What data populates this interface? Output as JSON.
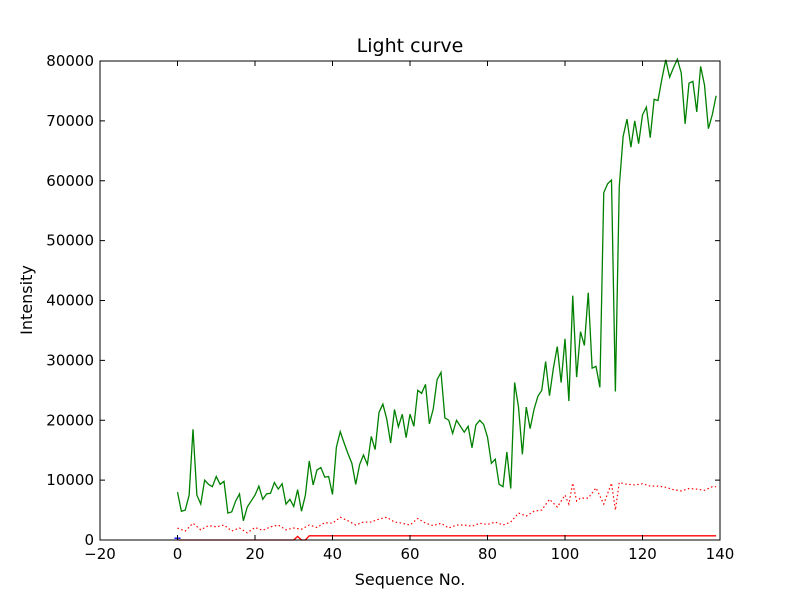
{
  "chart_data": {
    "type": "line",
    "title": "Light curve",
    "xlabel": "Sequence No.",
    "ylabel": "Intensity",
    "xlim": [
      -20,
      140
    ],
    "ylim": [
      0,
      80000
    ],
    "xticks": [
      -20,
      0,
      20,
      40,
      60,
      80,
      100,
      120,
      140
    ],
    "yticks": [
      0,
      10000,
      20000,
      30000,
      40000,
      50000,
      60000,
      70000,
      80000
    ],
    "grid": false,
    "series": [
      {
        "color": "#008000",
        "style": "solid",
        "x": [
          0,
          1,
          2,
          3,
          4,
          5,
          6,
          7,
          8,
          9,
          10,
          11,
          12,
          13,
          14,
          15,
          16,
          17,
          18,
          19,
          20,
          21,
          22,
          23,
          24,
          25,
          26,
          27,
          28,
          29,
          30,
          31,
          32,
          33,
          34,
          35,
          36,
          37,
          38,
          39,
          40,
          41,
          42,
          43,
          44,
          45,
          46,
          47,
          48,
          49,
          50,
          51,
          52,
          53,
          54,
          55,
          56,
          57,
          58,
          59,
          60,
          61,
          62,
          63,
          64,
          65,
          66,
          67,
          68,
          69,
          70,
          71,
          72,
          73,
          74,
          75,
          76,
          77,
          78,
          79,
          80,
          81,
          82,
          83,
          84,
          85,
          86,
          87,
          88,
          89,
          90,
          91,
          92,
          93,
          94,
          95,
          96,
          97,
          98,
          99,
          100,
          101,
          102,
          103,
          104,
          105,
          106,
          107,
          108,
          109,
          110,
          111,
          112,
          113,
          114,
          115,
          116,
          117,
          118,
          119,
          120,
          121,
          122,
          123,
          124,
          125,
          126,
          127,
          128,
          129,
          130,
          131,
          132,
          133,
          134,
          135,
          136,
          137,
          138,
          139
        ],
        "y": [
          8000,
          4800,
          5000,
          7500,
          18500,
          7500,
          6000,
          10000,
          9300,
          8900,
          10600,
          9300,
          9800,
          4500,
          4700,
          6500,
          7700,
          3200,
          5500,
          6500,
          7500,
          9000,
          6800,
          7700,
          7800,
          9600,
          8500,
          9400,
          6000,
          6800,
          5600,
          8400,
          4800,
          7500,
          13200,
          9200,
          11700,
          12100,
          10500,
          10600,
          7600,
          15500,
          18100,
          16200,
          14400,
          12800,
          9300,
          12600,
          14200,
          12600,
          17300,
          15100,
          21300,
          22700,
          20200,
          16200,
          21800,
          18900,
          21000,
          17100,
          21000,
          19000,
          25000,
          24500,
          26000,
          19400,
          21900,
          26800,
          28000,
          20400,
          20000,
          17800,
          20000,
          19000,
          18000,
          19000,
          15400,
          19200,
          20000,
          19300,
          17200,
          12800,
          13500,
          9300,
          8900,
          14700,
          8600,
          26300,
          22200,
          14300,
          22200,
          18600,
          21800,
          24000,
          25000,
          29800,
          24100,
          28700,
          32300,
          26300,
          33600,
          23200,
          40800,
          27200,
          34800,
          32500,
          41300,
          28700,
          29000,
          25500,
          58000,
          59500,
          60100,
          24800,
          59000,
          67400,
          70300,
          65600,
          70000,
          66200,
          71000,
          72300,
          67200,
          73600,
          73400,
          77000,
          80200,
          77300,
          78900,
          80300,
          78000,
          69500,
          76300,
          76600,
          71500,
          79100,
          76000,
          68700,
          71000,
          74200
        ]
      },
      {
        "color": "#ff0000",
        "style": "dotted",
        "x": [
          0,
          2,
          4,
          6,
          8,
          10,
          12,
          14,
          16,
          18,
          20,
          22,
          24,
          26,
          28,
          30,
          32,
          34,
          36,
          38,
          40,
          42,
          44,
          46,
          48,
          50,
          52,
          54,
          56,
          58,
          60,
          62,
          64,
          66,
          68,
          70,
          72,
          74,
          76,
          78,
          80,
          82,
          84,
          86,
          88,
          90,
          92,
          94,
          96,
          98,
          100,
          101,
          102,
          103,
          104,
          106,
          108,
          110,
          112,
          113,
          114,
          116,
          118,
          120,
          122,
          124,
          126,
          128,
          130,
          132,
          134,
          136,
          138,
          139
        ],
        "y": [
          2000,
          1500,
          2800,
          1700,
          2400,
          2200,
          2500,
          1500,
          2000,
          1200,
          2100,
          1600,
          2200,
          2500,
          1700,
          2000,
          1800,
          2500,
          2100,
          2900,
          2800,
          3800,
          3200,
          2500,
          3000,
          3000,
          3500,
          3800,
          3000,
          2800,
          2500,
          3600,
          2800,
          2400,
          2800,
          2000,
          2500,
          2500,
          2300,
          2800,
          2600,
          3000,
          2500,
          3000,
          4500,
          4000,
          4800,
          5000,
          6800,
          5500,
          7500,
          6000,
          9500,
          6500,
          7000,
          7000,
          8700,
          6000,
          9500,
          5000,
          9600,
          9300,
          9200,
          9400,
          9000,
          9000,
          8800,
          8400,
          8200,
          8600,
          8500,
          8300,
          8900,
          8900
        ]
      },
      {
        "color": "#ff0000",
        "style": "solid",
        "x": [
          0,
          30,
          31,
          32,
          33,
          34,
          139
        ],
        "y": [
          0,
          0,
          600,
          0,
          0,
          700,
          700
        ]
      },
      {
        "color": "#0000ff",
        "style": "solid",
        "x": [
          -0.8,
          0.8
        ],
        "y": [
          300,
          300
        ]
      }
    ]
  }
}
